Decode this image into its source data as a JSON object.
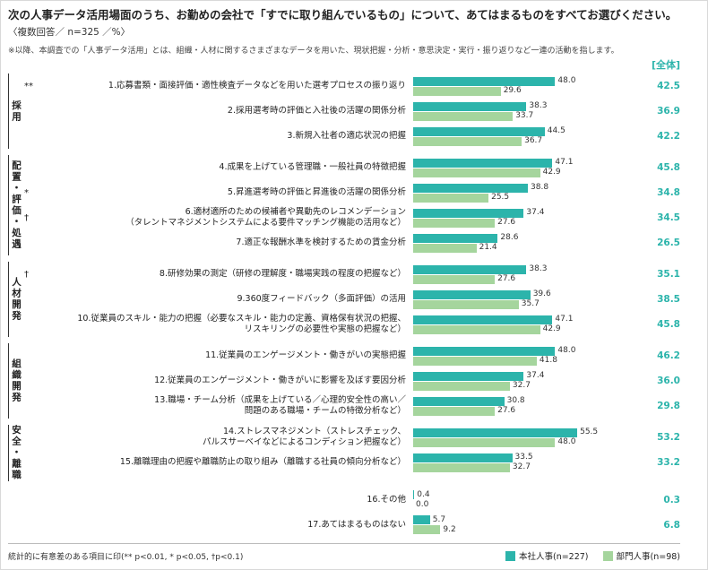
{
  "header": {
    "title": "次の人事データ活用場面のうち、お勤めの会社で「すでに取り組んでいるもの」について、あてはまるものをすべてお選びください。",
    "subtitle": "〈複数回答／ n=325 ／%〉",
    "note": "※以降、本調査での「人事データ活用」とは、組織・人材に関するさまざまなデータを用いた、現状把握・分析・意思決定・実行・振り返りなど一連の活動を指します。",
    "overall_label": "[全体]"
  },
  "footer": {
    "note": "統計的に有意差のある項目に印(** p<0.01, * p<0.05, †p<0.1)",
    "legend": [
      {
        "label": "本社人事(n=227)",
        "color": "#2cb4ab"
      },
      {
        "label": "部門人事(n=98)",
        "color": "#a5d59d"
      }
    ]
  },
  "chart_data": {
    "type": "bar",
    "orientation": "horizontal",
    "title": "次の人事データ活用場面のうち、お勤めの会社で「すでに取り組んでいるもの」について、あてはまるものをすべてお選びください。",
    "subtitle": "〈複数回答／ n=325 ／%〉",
    "xlim": [
      0,
      60
    ],
    "legend_position": "bottom-right",
    "series_names": [
      "本社人事(n=227)",
      "部門人事(n=98)"
    ],
    "overall_column_label": "[全体]",
    "colors": {
      "series1": "#2cb4ab",
      "series2": "#a5d59d",
      "overall_text": "#2cb4ab"
    },
    "groups": [
      {
        "category": "採用",
        "items": [
          {
            "no": 1,
            "mark": "**",
            "label": "1.応募書類・面接評価・適性検査データなどを用いた選考プロセスの振り返り",
            "series1": 48.0,
            "series2": 29.6,
            "overall": 42.5
          },
          {
            "no": 2,
            "mark": "",
            "label": "2.採用選考時の評価と入社後の活躍の関係分析",
            "series1": 38.3,
            "series2": 33.7,
            "overall": 36.9
          },
          {
            "no": 3,
            "mark": "",
            "label": "3.新規入社者の適応状況の把握",
            "series1": 44.5,
            "series2": 36.7,
            "overall": 42.2
          }
        ]
      },
      {
        "category": "配置・評価・処遇",
        "items": [
          {
            "no": 4,
            "mark": "",
            "label": "4.成果を上げている管理職・一般社員の特徴把握",
            "series1": 47.1,
            "series2": 42.9,
            "overall": 45.8
          },
          {
            "no": 5,
            "mark": "*",
            "label": "5.昇進選考時の評価と昇進後の活躍の関係分析",
            "series1": 38.8,
            "series2": 25.5,
            "overall": 34.8
          },
          {
            "no": 6,
            "mark": "†",
            "label": "6.適材適所のための候補者や異動先のレコメンデーション\n（タレントマネジメントシステムによる要件マッチング機能の活用など）",
            "series1": 37.4,
            "series2": 27.6,
            "overall": 34.5
          },
          {
            "no": 7,
            "mark": "",
            "label": "7.適正な報酬水準を検討するための賃金分析",
            "series1": 28.6,
            "series2": 21.4,
            "overall": 26.5
          }
        ]
      },
      {
        "category": "人材開発",
        "items": [
          {
            "no": 8,
            "mark": "†",
            "label": "8.研修効果の測定（研修の理解度・職場実践の程度の把握など）",
            "series1": 38.3,
            "series2": 27.6,
            "overall": 35.1
          },
          {
            "no": 9,
            "mark": "",
            "label": "9.360度フィードバック（多面評価）の活用",
            "series1": 39.6,
            "series2": 35.7,
            "overall": 38.5
          },
          {
            "no": 10,
            "mark": "",
            "label": "10.従業員のスキル・能力の把握（必要なスキル・能力の定義、資格保有状況の把握、\nリスキリングの必要性や実態の把握など）",
            "series1": 47.1,
            "series2": 42.9,
            "overall": 45.8
          }
        ]
      },
      {
        "category": "組織開発",
        "items": [
          {
            "no": 11,
            "mark": "",
            "label": "11.従業員のエンゲージメント・働きがいの実態把握",
            "series1": 48.0,
            "series2": 41.8,
            "overall": 46.2
          },
          {
            "no": 12,
            "mark": "",
            "label": "12.従業員のエンゲージメント・働きがいに影響を及ぼす要因分析",
            "series1": 37.4,
            "series2": 32.7,
            "overall": 36.0
          },
          {
            "no": 13,
            "mark": "",
            "label": "13.職場・チーム分析（成果を上げている／心理的安全性の高い／\n問題のある職場・チームの特徴分析など）",
            "series1": 30.8,
            "series2": 27.6,
            "overall": 29.8
          }
        ]
      },
      {
        "category": "安全・離職",
        "items": [
          {
            "no": 14,
            "mark": "",
            "label": "14.ストレスマネジメント（ストレスチェック、\nパルスサーベイなどによるコンディション把握など）",
            "series1": 55.5,
            "series2": 48.0,
            "overall": 53.2
          },
          {
            "no": 15,
            "mark": "",
            "label": "15.離職理由の把握や離職防止の取り組み（離職する社員の傾向分析など）",
            "series1": 33.5,
            "series2": 32.7,
            "overall": 33.2
          }
        ]
      },
      {
        "category": "",
        "items": [
          {
            "no": 16,
            "mark": "",
            "label": "16.その他",
            "series1": 0.4,
            "series2": 0.0,
            "overall": 0.3
          },
          {
            "no": 17,
            "mark": "",
            "label": "17.あてはまるものはない",
            "series1": 5.7,
            "series2": 9.2,
            "overall": 6.8
          }
        ]
      }
    ]
  }
}
